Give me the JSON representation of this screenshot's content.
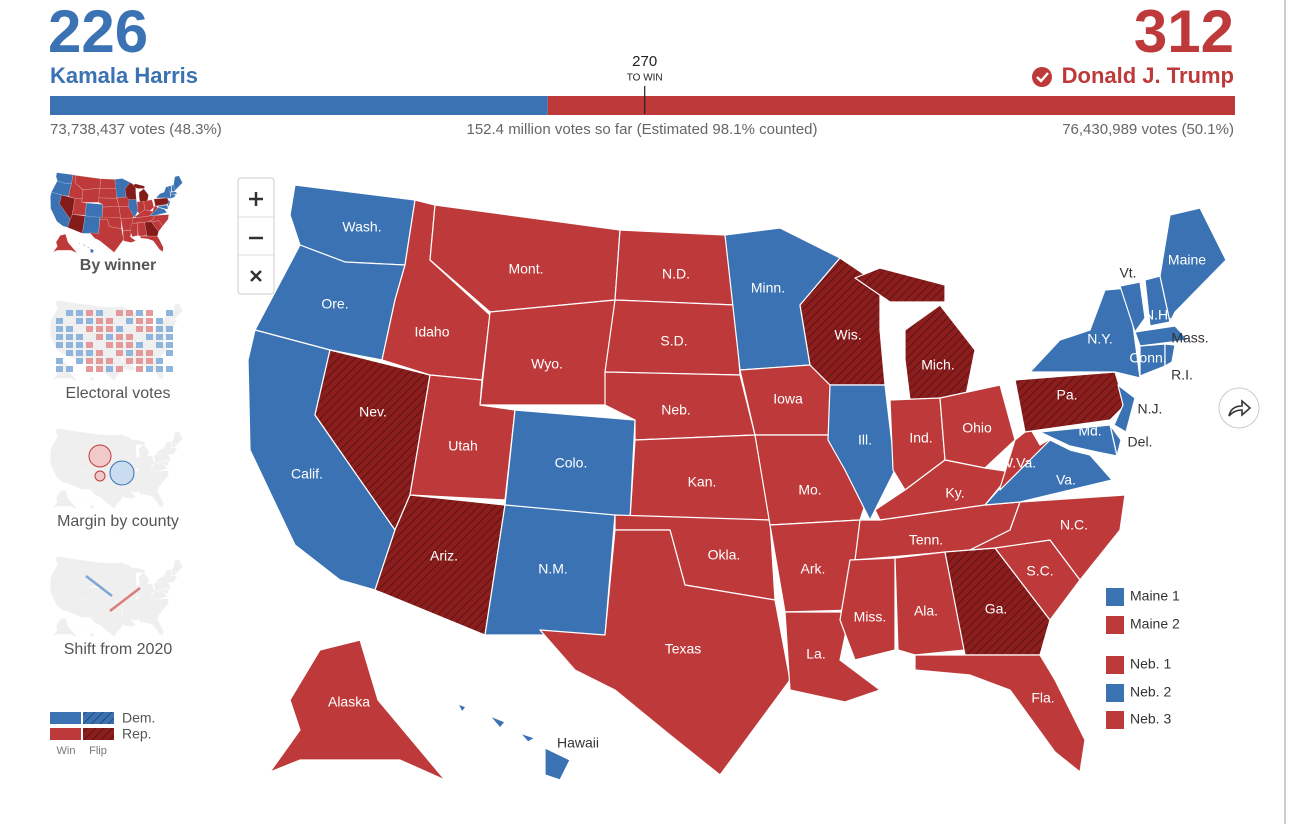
{
  "header": {
    "dem": {
      "electoral_votes": 226,
      "name": "Kamala Harris",
      "popular": "73,738,437 votes (48.3%)"
    },
    "rep": {
      "electoral_votes": 312,
      "name": "Donald J. Trump",
      "popular": "76,430,989 votes (50.1%)"
    },
    "threshold": {
      "value": 270,
      "label": "TO WIN"
    },
    "total": "152.4 million votes so far (Estimated 98.1% counted)"
  },
  "colors": {
    "dem": "#3a72b3",
    "rep": "#be3a3a",
    "flip": "#8c1d1d"
  },
  "sidebar": [
    {
      "label": "By winner"
    },
    {
      "label": "Electoral votes"
    },
    {
      "label": "Margin by county"
    },
    {
      "label": "Shift from 2020"
    }
  ],
  "map": {
    "states": [
      {
        "label": "Wash.",
        "winner": "dem",
        "flip": false
      },
      {
        "label": "Ore.",
        "winner": "dem",
        "flip": false
      },
      {
        "label": "Calif.",
        "winner": "dem",
        "flip": false
      },
      {
        "label": "Nev.",
        "winner": "rep",
        "flip": true
      },
      {
        "label": "Idaho",
        "winner": "rep",
        "flip": false
      },
      {
        "label": "Mont.",
        "winner": "rep",
        "flip": false
      },
      {
        "label": "Wyo.",
        "winner": "rep",
        "flip": false
      },
      {
        "label": "Utah",
        "winner": "rep",
        "flip": false
      },
      {
        "label": "Colo.",
        "winner": "dem",
        "flip": false
      },
      {
        "label": "Ariz.",
        "winner": "rep",
        "flip": true
      },
      {
        "label": "N.M.",
        "winner": "dem",
        "flip": false
      },
      {
        "label": "N.D.",
        "winner": "rep",
        "flip": false
      },
      {
        "label": "S.D.",
        "winner": "rep",
        "flip": false
      },
      {
        "label": "Neb.",
        "winner": "rep",
        "flip": false
      },
      {
        "label": "Kan.",
        "winner": "rep",
        "flip": false
      },
      {
        "label": "Okla.",
        "winner": "rep",
        "flip": false
      },
      {
        "label": "Texas",
        "winner": "rep",
        "flip": false
      },
      {
        "label": "Minn.",
        "winner": "dem",
        "flip": false
      },
      {
        "label": "Iowa",
        "winner": "rep",
        "flip": false
      },
      {
        "label": "Mo.",
        "winner": "rep",
        "flip": false
      },
      {
        "label": "Ark.",
        "winner": "rep",
        "flip": false
      },
      {
        "label": "La.",
        "winner": "rep",
        "flip": false
      },
      {
        "label": "Wis.",
        "winner": "rep",
        "flip": true
      },
      {
        "label": "Ill.",
        "winner": "dem",
        "flip": false
      },
      {
        "label": "Mich.",
        "winner": "rep",
        "flip": true
      },
      {
        "label": "Ind.",
        "winner": "rep",
        "flip": false
      },
      {
        "label": "Ohio",
        "winner": "rep",
        "flip": false
      },
      {
        "label": "Ky.",
        "winner": "rep",
        "flip": false
      },
      {
        "label": "Tenn.",
        "winner": "rep",
        "flip": false
      },
      {
        "label": "Miss.",
        "winner": "rep",
        "flip": false
      },
      {
        "label": "Ala.",
        "winner": "rep",
        "flip": false
      },
      {
        "label": "Ga.",
        "winner": "rep",
        "flip": true
      },
      {
        "label": "Fla.",
        "winner": "rep",
        "flip": false
      },
      {
        "label": "S.C.",
        "winner": "rep",
        "flip": false
      },
      {
        "label": "N.C.",
        "winner": "rep",
        "flip": false
      },
      {
        "label": "Va.",
        "winner": "dem",
        "flip": false
      },
      {
        "label": "W.Va.",
        "winner": "rep",
        "flip": false
      },
      {
        "label": "Pa.",
        "winner": "rep",
        "flip": true
      },
      {
        "label": "N.Y.",
        "winner": "dem",
        "flip": false
      },
      {
        "label": "N.J.",
        "winner": "dem",
        "flip": false
      },
      {
        "label": "Del.",
        "winner": "dem",
        "flip": false
      },
      {
        "label": "Md.",
        "winner": "dem",
        "flip": false
      },
      {
        "label": "Vt.",
        "winner": "dem",
        "flip": false
      },
      {
        "label": "N.H.",
        "winner": "dem",
        "flip": false
      },
      {
        "label": "Maine",
        "winner": "dem",
        "flip": false
      },
      {
        "label": "Mass.",
        "winner": "dem",
        "flip": false
      },
      {
        "label": "Conn.",
        "winner": "dem",
        "flip": false
      },
      {
        "label": "R.I.",
        "winner": "dem",
        "flip": false
      },
      {
        "label": "Alaska",
        "winner": "rep",
        "flip": false
      },
      {
        "label": "Hawaii",
        "winner": "dem",
        "flip": false
      }
    ],
    "districts": [
      {
        "label": "Maine 1",
        "winner": "dem"
      },
      {
        "label": "Maine 2",
        "winner": "rep"
      },
      {
        "label": "Neb. 1",
        "winner": "rep"
      },
      {
        "label": "Neb. 2",
        "winner": "dem"
      },
      {
        "label": "Neb. 3",
        "winner": "rep"
      }
    ],
    "legend": {
      "dem": "Dem.",
      "rep": "Rep.",
      "win": "Win",
      "flip": "Flip"
    }
  }
}
